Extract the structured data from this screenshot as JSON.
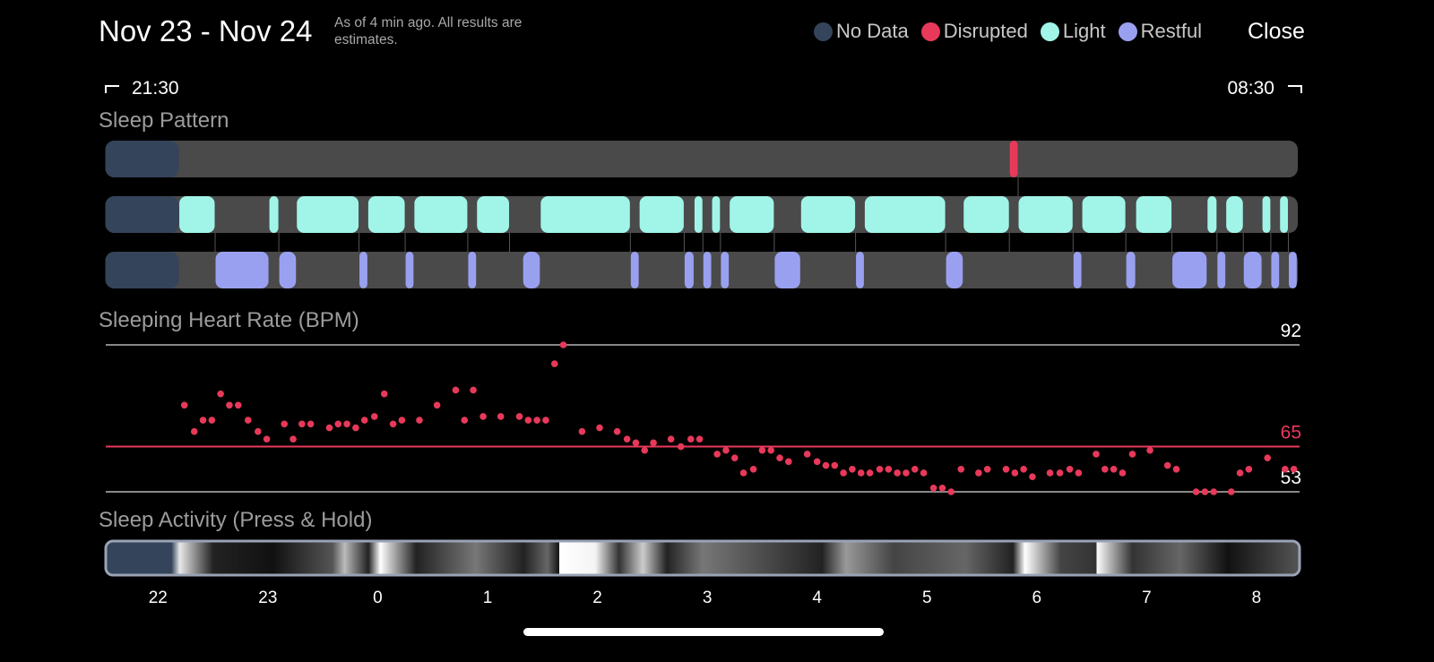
{
  "header": {
    "title": "Nov 23 - Nov 24",
    "note": "As of 4 min ago. All results are estimates.",
    "close": "Close"
  },
  "legend": [
    {
      "label": "No Data",
      "color": "#34445a"
    },
    {
      "label": "Disrupted",
      "color": "#e8395a"
    },
    {
      "label": "Light",
      "color": "#a0f5e8"
    },
    {
      "label": "Restful",
      "color": "#9aa0f0"
    }
  ],
  "range": {
    "start": "21:30",
    "end": "08:30"
  },
  "sleep_pattern": {
    "title": "Sleep Pattern",
    "no_data": [
      21.52,
      22.19
    ],
    "rows": [
      {
        "color": "#e8395a",
        "segments": [
          [
            29.75,
            29.83
          ]
        ]
      },
      {
        "color": "#a0f5e8",
        "segments": [
          [
            22.19,
            22.52
          ],
          [
            23.01,
            23.1
          ],
          [
            23.26,
            23.83
          ],
          [
            23.91,
            24.25
          ],
          [
            24.33,
            24.82
          ],
          [
            24.9,
            25.2
          ],
          [
            25.48,
            26.3
          ],
          [
            26.38,
            26.79
          ],
          [
            26.88,
            26.96
          ],
          [
            27.04,
            27.12
          ],
          [
            27.2,
            27.61
          ],
          [
            27.85,
            28.35
          ],
          [
            28.43,
            29.17
          ],
          [
            29.33,
            29.75
          ],
          [
            29.83,
            30.33
          ],
          [
            30.41,
            30.81
          ],
          [
            30.9,
            31.23
          ],
          [
            31.55,
            31.64
          ],
          [
            31.72,
            31.88
          ],
          [
            32.05,
            32.13
          ],
          [
            32.21,
            32.29
          ]
        ]
      },
      {
        "color": "#9aa0f0",
        "segments": [
          [
            22.52,
            23.01
          ],
          [
            23.1,
            23.26
          ],
          [
            23.83,
            23.91
          ],
          [
            24.25,
            24.33
          ],
          [
            24.82,
            24.9
          ],
          [
            25.32,
            25.48
          ],
          [
            26.3,
            26.38
          ],
          [
            26.79,
            26.88
          ],
          [
            26.96,
            27.04
          ],
          [
            27.12,
            27.2
          ],
          [
            27.61,
            27.85
          ],
          [
            28.35,
            28.43
          ],
          [
            29.17,
            29.33
          ],
          [
            30.33,
            30.41
          ],
          [
            30.81,
            30.9
          ],
          [
            31.23,
            31.55
          ],
          [
            31.64,
            31.72
          ],
          [
            31.88,
            32.05
          ],
          [
            32.13,
            32.21
          ],
          [
            32.29,
            32.37
          ]
        ]
      }
    ]
  },
  "activity": {
    "title": "Sleep Activity (Press & Hold)"
  },
  "chart_data": {
    "type": "scatter",
    "title": "Sleeping Heart Rate (BPM)",
    "color": "#e8395a",
    "xlim": [
      21.5,
      32.4
    ],
    "ylim": [
      53,
      92
    ],
    "yticks": [
      53,
      92
    ],
    "reference_line": {
      "value": 65,
      "color": "#e8395a"
    },
    "xticks": [
      22,
      23,
      {
        "value": 24,
        "label": "0"
      },
      {
        "value": 25,
        "label": "1"
      },
      {
        "value": 26,
        "label": "2"
      },
      {
        "value": 27,
        "label": "3"
      },
      {
        "value": 28,
        "label": "4"
      },
      {
        "value": 29,
        "label": "5"
      },
      {
        "value": 30,
        "label": "6"
      },
      {
        "value": 31,
        "label": "7"
      },
      {
        "value": 32,
        "label": "8"
      }
    ],
    "x": [
      22.24,
      22.33,
      22.41,
      22.49,
      22.57,
      22.65,
      22.73,
      22.82,
      22.91,
      22.99,
      23.15,
      23.23,
      23.31,
      23.39,
      23.56,
      23.64,
      23.72,
      23.8,
      23.88,
      23.97,
      24.06,
      24.14,
      24.22,
      24.38,
      24.54,
      24.71,
      24.79,
      24.87,
      24.96,
      25.12,
      25.29,
      25.37,
      25.45,
      25.53,
      25.61,
      25.69,
      25.86,
      26.02,
      26.18,
      26.27,
      26.35,
      26.43,
      26.51,
      26.67,
      26.76,
      26.85,
      26.93,
      27.09,
      27.17,
      27.25,
      27.33,
      27.42,
      27.5,
      27.58,
      27.66,
      27.74,
      27.91,
      28.0,
      28.08,
      28.16,
      28.24,
      28.32,
      28.4,
      28.48,
      28.57,
      28.65,
      28.73,
      28.81,
      28.89,
      28.97,
      29.06,
      29.14,
      29.22,
      29.31,
      29.47,
      29.55,
      29.72,
      29.8,
      29.88,
      29.96,
      30.12,
      30.21,
      30.3,
      30.38,
      30.54,
      30.62,
      30.7,
      30.78,
      30.87,
      31.03,
      31.19,
      31.27,
      31.45,
      31.53,
      31.61,
      31.77,
      31.85,
      31.93,
      32.1,
      32.26,
      32.34
    ],
    "values": [
      76,
      69,
      72,
      72,
      79,
      76,
      76,
      72,
      69,
      67,
      71,
      67,
      71,
      71,
      70,
      71,
      71,
      70,
      72,
      73,
      79,
      71,
      72,
      72,
      76,
      80,
      72,
      80,
      73,
      73,
      73,
      72,
      72,
      72,
      87,
      92,
      69,
      70,
      69,
      67,
      66,
      64,
      66,
      67,
      65,
      67,
      67,
      63,
      64,
      62,
      58,
      59,
      64,
      64,
      62,
      61,
      63,
      61,
      60,
      60,
      58,
      59,
      58,
      58,
      59,
      59,
      58,
      58,
      59,
      58,
      54,
      54,
      53,
      59,
      58,
      59,
      59,
      58,
      59,
      57,
      58,
      58,
      59,
      58,
      63,
      59,
      59,
      58,
      63,
      64,
      60,
      59,
      53,
      53,
      53,
      53,
      58,
      59,
      62,
      59,
      59
    ]
  }
}
